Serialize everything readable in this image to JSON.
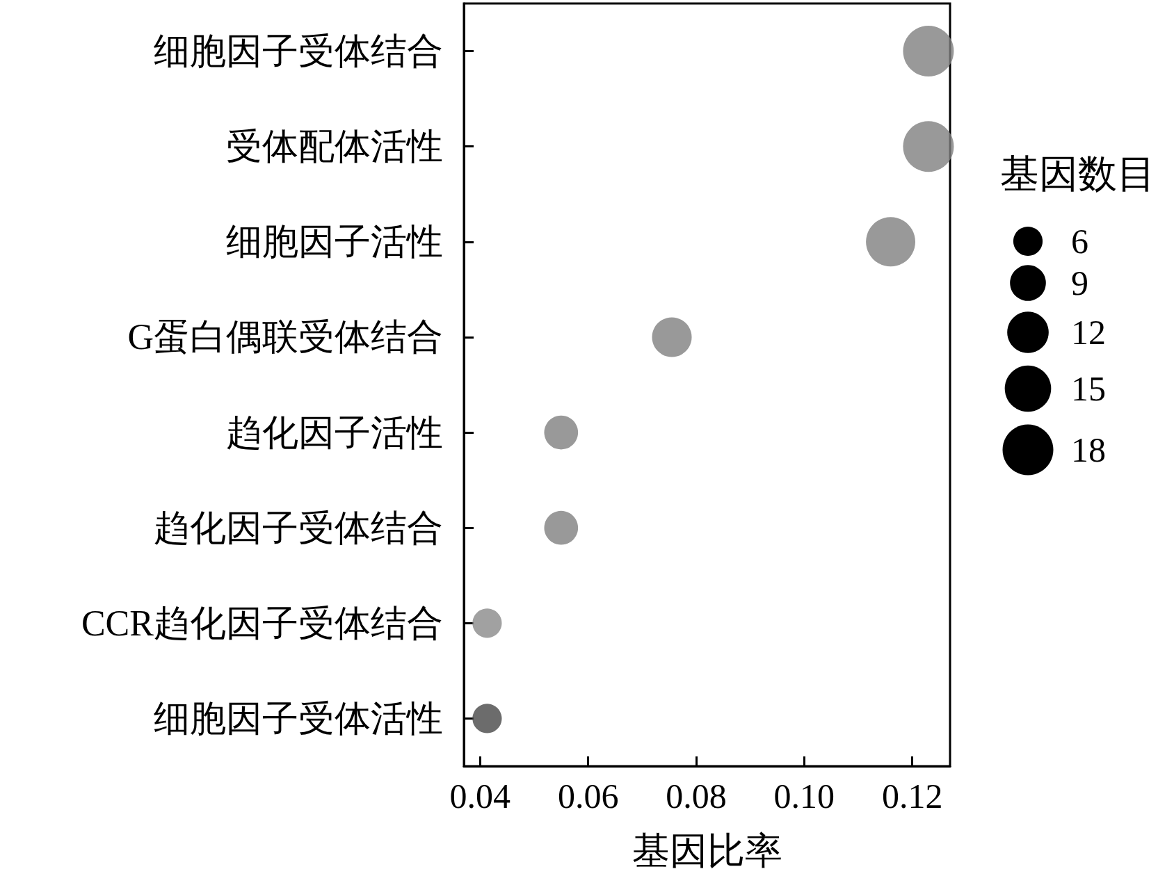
{
  "chart_data": {
    "type": "bubble",
    "orientation": "horizontal",
    "categories": [
      "细胞因子受体结合",
      "受体配体活性",
      "细胞因子活性",
      "G蛋白偶联受体结合",
      "趋化因子活性",
      "趋化因子受体结合",
      "CCR趋化因子受体结合",
      "细胞因子受体活性"
    ],
    "values": [
      0.123,
      0.123,
      0.116,
      0.0755,
      0.055,
      0.055,
      0.0413,
      0.0413
    ],
    "sizes": [
      18,
      18,
      17,
      11,
      8,
      8,
      6,
      6
    ],
    "colors": [
      "#808080",
      "#808080",
      "#808080",
      "#808080",
      "#808080",
      "#808080",
      "#8a8a8a",
      "#474747"
    ],
    "size_legend": [
      6,
      9,
      12,
      15,
      18
    ],
    "legend_title": "基因数目",
    "xlabel": "基因比率",
    "xlim": [
      0.037,
      0.127
    ],
    "xticks": [
      0.04,
      0.06,
      0.08,
      {
        "value": 0.1,
        "label": "0.10"
      },
      0.12
    ],
    "grid": false
  }
}
